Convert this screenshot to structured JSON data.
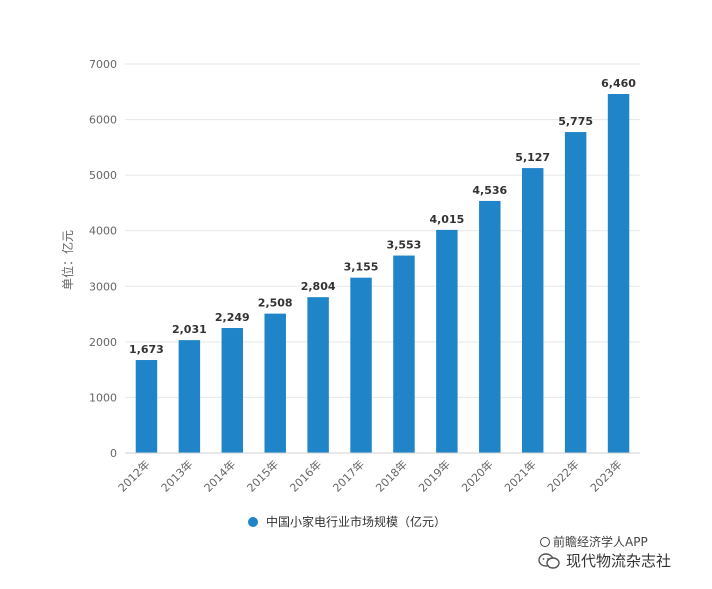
{
  "colors": {
    "bar": "#1f84c8",
    "axis_text": "#666666",
    "grid": "#e7e7e7"
  },
  "chart_data": {
    "type": "bar",
    "categories": [
      "2012年",
      "2013年",
      "2014年",
      "2015年",
      "2016年",
      "2017年",
      "2018年",
      "2019年",
      "2020年",
      "2021年",
      "2022年",
      "2023年"
    ],
    "values": [
      1673,
      2031,
      2249,
      2508,
      2804,
      3155,
      3553,
      4015,
      4536,
      5127,
      5775,
      6460
    ],
    "value_labels": [
      "1,673",
      "2,031",
      "2,249",
      "2,508",
      "2,804",
      "3,155",
      "3,553",
      "4,015",
      "4,536",
      "5,127",
      "5,775",
      "6,460"
    ],
    "title": "",
    "xlabel": "",
    "ylabel": "单位：亿元",
    "ylim": [
      0,
      7000
    ],
    "yticks": [
      0,
      1000,
      2000,
      3000,
      4000,
      5000,
      6000,
      7000
    ],
    "grid": true,
    "legend_position": "bottom",
    "series": [
      {
        "name": "中国小家电行业市场规模（亿元）",
        "values": [
          1673,
          2031,
          2249,
          2508,
          2804,
          3155,
          3553,
          4015,
          4536,
          5127,
          5775,
          6460
        ]
      }
    ]
  },
  "legend": {
    "label": "中国小家电行业市场规模（亿元）"
  },
  "source": {
    "label": "前瞻经济学人APP",
    "icon": "copyright-circle-icon"
  },
  "watermark": {
    "label": "现代物流杂志社",
    "icon": "wechat-icon"
  }
}
